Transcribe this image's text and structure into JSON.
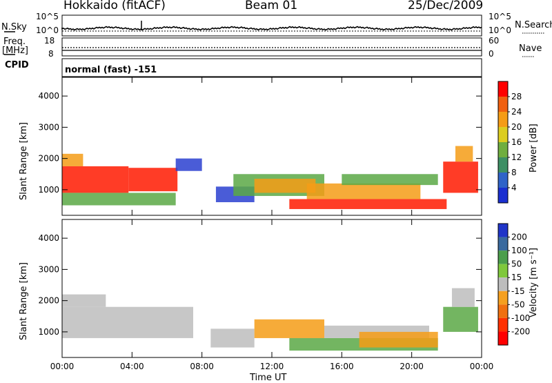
{
  "header": {
    "station": "Hokkaido (fitACF)",
    "beam": "Beam 01",
    "date": "25/Dec/2009"
  },
  "nsky_panel": {
    "left_label": "N.Sky",
    "right_label": "N.Search",
    "left_ticks": [
      "10^5",
      "10^0"
    ],
    "right_ticks": [
      "10^5",
      "10^0"
    ]
  },
  "freq_panel": {
    "label_line1": "Freq.",
    "label_line2": "[MHz]",
    "left_ticks": [
      "18",
      "8"
    ],
    "right_ticks": [
      "60",
      "0"
    ],
    "right_label": "Nave"
  },
  "cpid": {
    "label": "CPID",
    "mode": "normal (fast) -151"
  },
  "colors": {
    "power_scale": [
      "#1a2fd0",
      "#2f63c8",
      "#3d8f64",
      "#6fae3f",
      "#dccd20",
      "#f59c16",
      "#f06010",
      "#ff0000"
    ],
    "velocity_scale": [
      "#2035c8",
      "#3a6a9e",
      "#4b9e4c",
      "#7fc83c",
      "#bdbdbd",
      "#f5a020",
      "#f07010",
      "#ff3000",
      "#ff0000"
    ]
  },
  "chart_data": [
    {
      "type": "heatmap",
      "title": "",
      "xlabel": "Time UT",
      "ylabel": "Slant Range [km]",
      "x_ticks": [
        "00:00",
        "04:00",
        "08:00",
        "12:00",
        "16:00",
        "20:00",
        "00:00"
      ],
      "y_ticks": [
        "1000",
        "2000",
        "3000",
        "4000"
      ],
      "colorbar": {
        "label": "Power [dB]",
        "ticks": [
          "4",
          "8",
          "12",
          "16",
          "20",
          "24",
          "28"
        ]
      },
      "xlim_hours": [
        0,
        24
      ],
      "ylim_km": [
        180,
        4600
      ],
      "regions": [
        {
          "t0": 0.0,
          "t1": 3.8,
          "r0": 900,
          "r1": 1750,
          "level": "red"
        },
        {
          "t0": 3.8,
          "t1": 6.6,
          "r0": 950,
          "r1": 1700,
          "level": "red"
        },
        {
          "t0": 0.0,
          "t1": 1.2,
          "r0": 1750,
          "r1": 2150,
          "level": "orange"
        },
        {
          "t0": 0.0,
          "t1": 6.5,
          "r0": 500,
          "r1": 900,
          "level": "green"
        },
        {
          "t0": 6.5,
          "t1": 8.0,
          "r0": 1600,
          "r1": 2000,
          "level": "blue"
        },
        {
          "t0": 8.8,
          "t1": 11.0,
          "r0": 600,
          "r1": 1100,
          "level": "blue"
        },
        {
          "t0": 9.8,
          "t1": 15.0,
          "r0": 800,
          "r1": 1500,
          "level": "green"
        },
        {
          "t0": 11.0,
          "t1": 14.5,
          "r0": 900,
          "r1": 1350,
          "level": "orange"
        },
        {
          "t0": 13.0,
          "t1": 22.0,
          "r0": 380,
          "r1": 700,
          "level": "red"
        },
        {
          "t0": 14.0,
          "t1": 20.5,
          "r0": 700,
          "r1": 1200,
          "level": "orange"
        },
        {
          "t0": 16.0,
          "t1": 21.5,
          "r0": 1150,
          "r1": 1500,
          "level": "green"
        },
        {
          "t0": 21.8,
          "t1": 23.8,
          "r0": 900,
          "r1": 1900,
          "level": "red"
        },
        {
          "t0": 22.5,
          "t1": 23.5,
          "r0": 1900,
          "r1": 2400,
          "level": "orange"
        }
      ]
    },
    {
      "type": "heatmap",
      "title": "",
      "xlabel": "Time UT",
      "ylabel": "Slant Range [km]",
      "x_ticks": [
        "00:00",
        "04:00",
        "08:00",
        "12:00",
        "16:00",
        "20:00",
        "00:00"
      ],
      "y_ticks": [
        "1000",
        "2000",
        "3000",
        "4000"
      ],
      "colorbar": {
        "label": "Velocity [m s⁻¹]",
        "ticks": [
          "200",
          "100",
          "50",
          "15",
          "-15",
          "-50",
          "-100",
          "-200"
        ]
      },
      "xlim_hours": [
        0,
        24
      ],
      "ylim_km": [
        180,
        4600
      ],
      "regions": [
        {
          "t0": 0.0,
          "t1": 7.5,
          "r0": 800,
          "r1": 1800,
          "level": "gray"
        },
        {
          "t0": 0.0,
          "t1": 2.5,
          "r0": 1800,
          "r1": 2200,
          "level": "gray"
        },
        {
          "t0": 8.5,
          "t1": 11.0,
          "r0": 500,
          "r1": 1100,
          "level": "gray"
        },
        {
          "t0": 11.0,
          "t1": 15.0,
          "r0": 800,
          "r1": 1400,
          "level": "orange"
        },
        {
          "t0": 13.0,
          "t1": 21.5,
          "r0": 400,
          "r1": 800,
          "level": "green"
        },
        {
          "t0": 15.0,
          "t1": 21.0,
          "r0": 800,
          "r1": 1200,
          "level": "gray"
        },
        {
          "t0": 17.0,
          "t1": 21.5,
          "r0": 500,
          "r1": 1000,
          "level": "orange"
        },
        {
          "t0": 21.8,
          "t1": 23.8,
          "r0": 1000,
          "r1": 1800,
          "level": "green"
        },
        {
          "t0": 22.3,
          "t1": 23.6,
          "r0": 1800,
          "r1": 2400,
          "level": "gray"
        }
      ]
    }
  ]
}
